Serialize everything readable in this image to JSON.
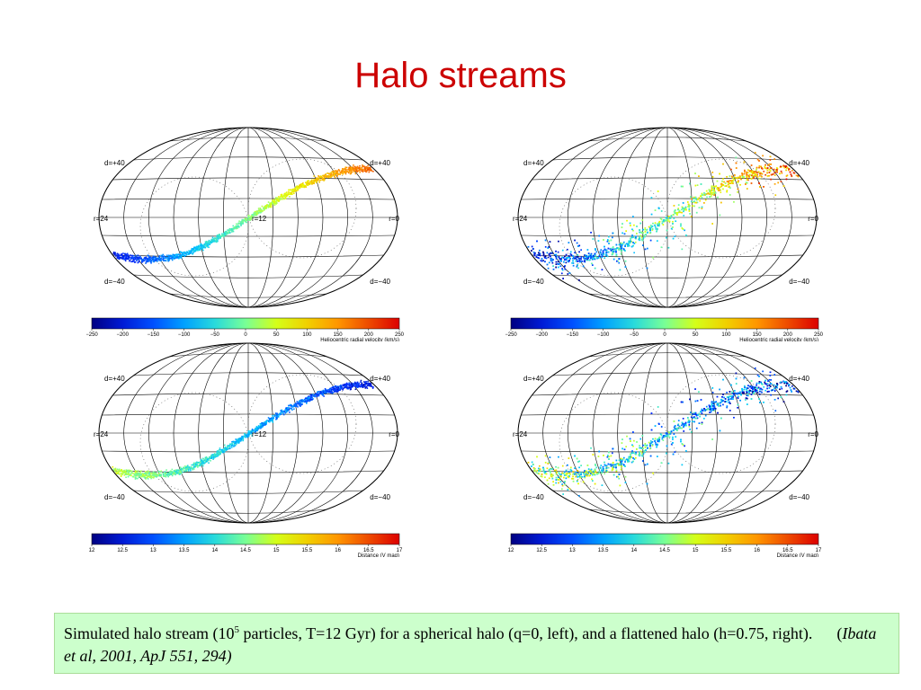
{
  "slide": {
    "title": "Halo streams"
  },
  "panels": [
    {
      "id": "top-left",
      "labels": {
        "dec_pos": "d=+40",
        "dec_pos_right": "d=+40",
        "dec_neg": "d=−40",
        "dec_neg_right": "d=−40",
        "ra_left": "r=24",
        "ra_mid": "r=12",
        "ra_right": "r=0"
      },
      "colorbar": {
        "ticks": [
          "−250",
          "−200",
          "−150",
          "−100",
          "−50",
          "0",
          "50",
          "100",
          "150",
          "200",
          "250"
        ],
        "label": "Heliocentric radial velocity (km/s)"
      }
    },
    {
      "id": "top-right",
      "labels": {
        "dec_pos": "d=+40",
        "dec_pos_right": "d=+40",
        "dec_neg": "d=−40",
        "dec_neg_right": "d=−40",
        "ra_left": "r=24",
        "ra_mid": "",
        "ra_right": "r=0"
      },
      "colorbar": {
        "ticks": [
          "−250",
          "−200",
          "−150",
          "−100",
          "−50",
          "0",
          "50",
          "100",
          "150",
          "200",
          "250"
        ],
        "label": "Heliocentric radial velocity (km/s)"
      }
    },
    {
      "id": "bottom-left",
      "labels": {
        "dec_pos": "d=+40",
        "dec_pos_right": "d=+40",
        "dec_neg": "d=−40",
        "dec_neg_right": "d=−40",
        "ra_left": "r=24",
        "ra_mid": "r=12",
        "ra_right": "r=0"
      },
      "colorbar": {
        "ticks": [
          "12",
          "12.5",
          "13",
          "13.5",
          "14",
          "14.5",
          "15",
          "15.5",
          "16",
          "16.5",
          "17"
        ],
        "label": "Distance (V mag)"
      }
    },
    {
      "id": "bottom-right",
      "labels": {
        "dec_pos": "d=+40",
        "dec_pos_right": "d=+40",
        "dec_neg": "d=−40",
        "dec_neg_right": "d=−40",
        "ra_left": "r=24",
        "ra_mid": "",
        "ra_right": "r=0"
      },
      "colorbar": {
        "ticks": [
          "12",
          "12.5",
          "13",
          "13.5",
          "14",
          "14.5",
          "15",
          "15.5",
          "16",
          "16.5",
          "17"
        ],
        "label": "Distance (V mag)"
      }
    }
  ],
  "caption": {
    "part1": "Simulated halo stream (10",
    "sup": "5",
    "part2": " particles, T=12 Gyr) for a spherical halo (q=0, left), and a flattened halo (h=0.75, right).",
    "citation_open": "(",
    "citation": "Ibata et al, 2001, ApJ 551, 294)"
  },
  "colors": {
    "title": "#cc0000",
    "caption_bg": "#ccffcc"
  }
}
